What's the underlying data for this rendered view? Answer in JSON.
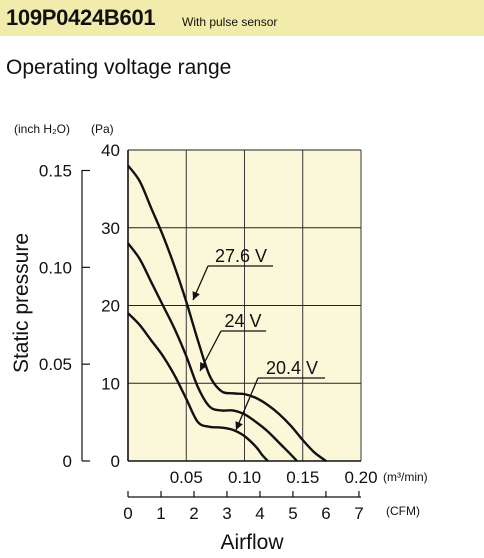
{
  "header": {
    "model": "109P0424B601",
    "subtitle": "With pulse sensor",
    "heading": "Operating voltage range"
  },
  "colors": {
    "header_band": "#f1ecac",
    "plot_background": "#fbf8da",
    "line": "#111111"
  },
  "chart_data": {
    "type": "line",
    "ylabel": "Static pressure",
    "xlabel": "Airflow",
    "x_unit_primary": "(m³/min)",
    "x_unit_secondary": "(CFM)",
    "y_unit_primary": "(Pa)",
    "y_unit_secondary": "(inch H₂O)",
    "xlim": [
      0,
      0.2
    ],
    "ylim": [
      0,
      40
    ],
    "x_ticks": [
      "0.05",
      "0.10",
      "0.15",
      "0.20"
    ],
    "x_ticks_cfm": [
      "0",
      "1",
      "2",
      "3",
      "4",
      "5",
      "6",
      "7"
    ],
    "y_ticks_pa": [
      "0",
      "10",
      "20",
      "30",
      "40"
    ],
    "y_ticks_inch": [
      "0",
      "0.05",
      "0.10",
      "0.15"
    ],
    "grid": true,
    "series": [
      {
        "name": "27.6 V",
        "x": [
          0,
          0.01,
          0.02,
          0.03,
          0.04,
          0.05,
          0.06,
          0.07,
          0.08,
          0.09,
          0.1,
          0.11,
          0.12,
          0.13,
          0.14,
          0.15,
          0.16,
          0.17
        ],
        "y": [
          38,
          36,
          32.5,
          29,
          25,
          20.5,
          15.5,
          11,
          9,
          8.7,
          8.6,
          8.1,
          7.2,
          6,
          4.5,
          2.7,
          1.1,
          0
        ]
      },
      {
        "name": "24 V",
        "x": [
          0,
          0.01,
          0.02,
          0.03,
          0.04,
          0.05,
          0.06,
          0.07,
          0.08,
          0.09,
          0.1,
          0.11,
          0.12,
          0.13,
          0.14,
          0.145
        ],
        "y": [
          28,
          26,
          23,
          20,
          17,
          13.5,
          9.5,
          7,
          6.5,
          6.5,
          6,
          5,
          3.8,
          2.3,
          0.8,
          0
        ]
      },
      {
        "name": "20.4 V",
        "x": [
          0,
          0.01,
          0.02,
          0.03,
          0.04,
          0.05,
          0.06,
          0.07,
          0.08,
          0.09,
          0.1,
          0.11,
          0.115,
          0.12
        ],
        "y": [
          19,
          17.5,
          15.5,
          13.5,
          11,
          8,
          5,
          4.4,
          4.3,
          4,
          3.2,
          1.8,
          0.8,
          0
        ]
      }
    ],
    "annotations": [
      "27.6 V",
      "24 V",
      "20.4 V"
    ]
  }
}
